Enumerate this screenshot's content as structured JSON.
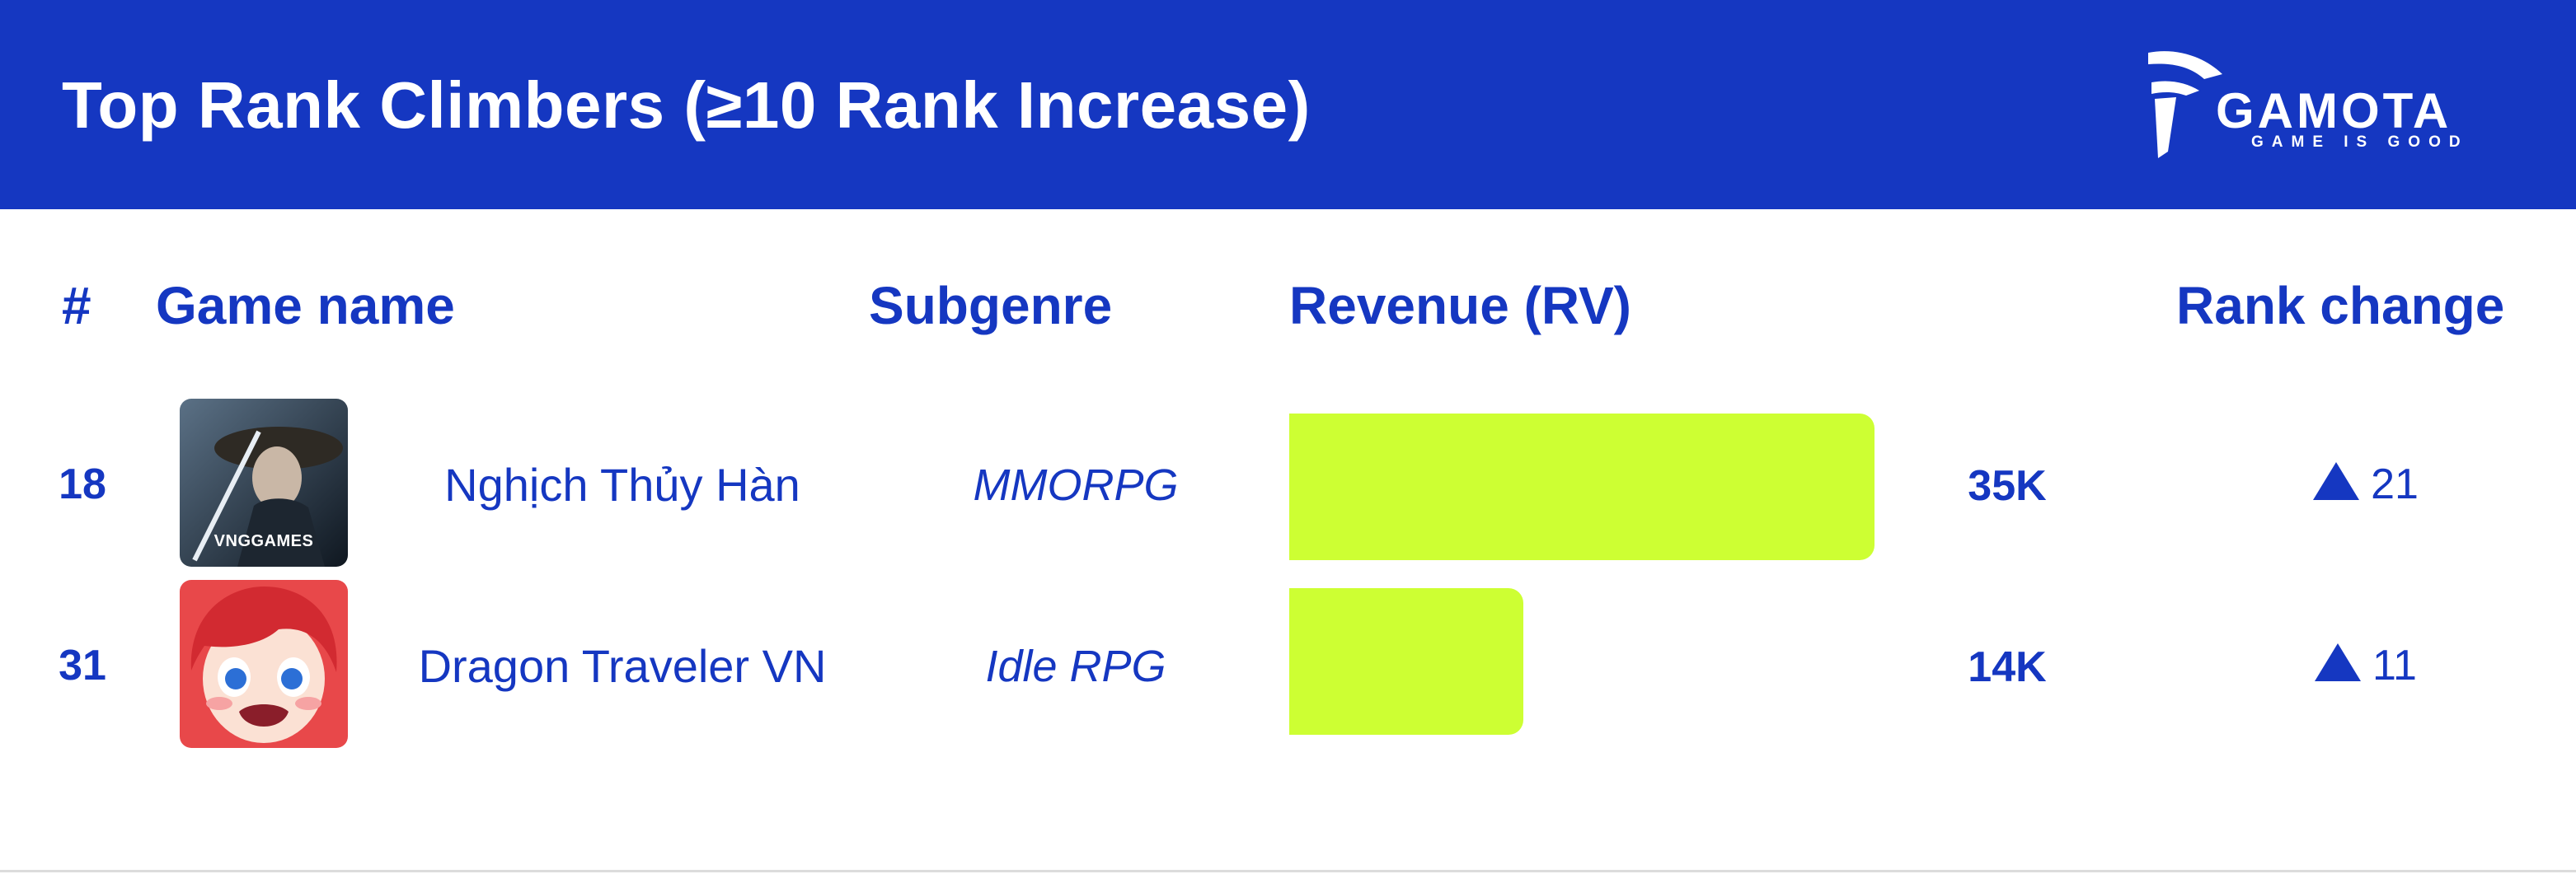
{
  "header": {
    "title": "Top Rank Climbers (≥10 Rank Increase)",
    "logo": {
      "word": "GAMOTA",
      "tagline": "GAME IS GOOD"
    }
  },
  "columns": {
    "rank": "#",
    "game_name": "Game name",
    "subgenre": "Subgenre",
    "revenue": "Revenue (RV)",
    "rank_change": "Rank change"
  },
  "colors": {
    "brand_blue": "#1537c1",
    "bar": "#cdff33",
    "background": "#ffffff"
  },
  "rows": [
    {
      "rank": "18",
      "name": "Nghịch Thủy Hàn",
      "subgenre": "MMORPG",
      "revenue_label": "35K",
      "rank_change": "21",
      "thumb_text": "VNGGAMES"
    },
    {
      "rank": "31",
      "name": "Dragon Traveler VN",
      "subgenre": "Idle RPG",
      "revenue_label": "14K",
      "rank_change": "11",
      "thumb_text": ""
    }
  ],
  "chart_data": {
    "type": "bar",
    "orientation": "horizontal",
    "categories": [
      "Nghịch Thủy Hàn",
      "Dragon Traveler VN"
    ],
    "values": [
      35000,
      14000
    ],
    "xlim": [
      0,
      35000
    ],
    "grid": false
  }
}
